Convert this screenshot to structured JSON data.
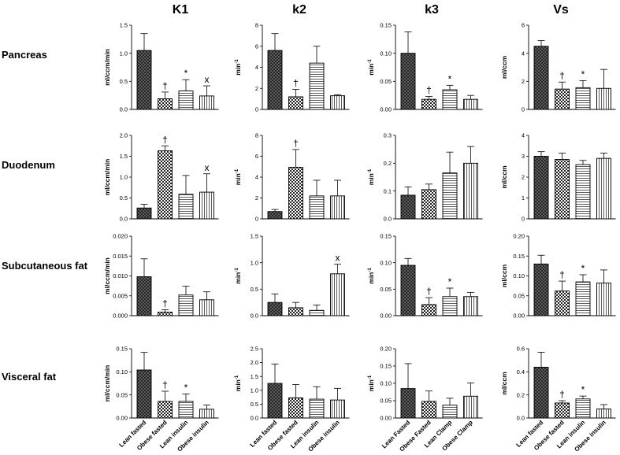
{
  "column_titles": [
    "K1",
    "k2",
    "k3",
    "Vs"
  ],
  "row_labels": [
    "Pancreas",
    "Duodenum",
    "Subcutaneous fat",
    "Visceral fat"
  ],
  "categories_insulin": [
    "Lean fasted",
    "Obese fasted",
    "Lean insulin",
    "Obese insulin"
  ],
  "categories_clamp": [
    "Lean Fasted",
    "Obese Fasted",
    "Lean Clamp",
    "Obese Clamp"
  ],
  "series_patterns": [
    "crosshatch",
    "checker",
    "horizontal-lines",
    "vertical-lines"
  ],
  "colors": {
    "ink": "#000000",
    "background": "#ffffff"
  },
  "chart_data": [
    {
      "type": "bar",
      "row": 0,
      "col": 0,
      "ylabel": "ml/ccm/min",
      "ylim": [
        0,
        1.5
      ],
      "yticks": [
        "0.0",
        "0.5",
        "1.0",
        "1.5"
      ],
      "values": [
        1.05,
        0.19,
        0.33,
        0.24
      ],
      "errors": [
        0.3,
        0.12,
        0.2,
        0.18
      ],
      "marks": [
        "",
        "†",
        "*",
        "x"
      ]
    },
    {
      "type": "bar",
      "row": 0,
      "col": 1,
      "ylabel": "min-1",
      "ylim": [
        0,
        8
      ],
      "yticks": [
        "0",
        "2",
        "4",
        "6",
        "8"
      ],
      "values": [
        5.6,
        1.2,
        4.4,
        1.3
      ],
      "errors": [
        1.6,
        0.7,
        1.6,
        0.1
      ],
      "marks": [
        "",
        "†",
        "",
        ""
      ]
    },
    {
      "type": "bar",
      "row": 0,
      "col": 2,
      "ylabel": "min-1",
      "ylim": [
        0,
        0.15
      ],
      "yticks": [
        "0.00",
        "0.05",
        "0.10",
        "0.15"
      ],
      "values": [
        0.1,
        0.018,
        0.035,
        0.018
      ],
      "errors": [
        0.038,
        0.005,
        0.008,
        0.007
      ],
      "marks": [
        "",
        "†",
        "*",
        ""
      ]
    },
    {
      "type": "bar",
      "row": 0,
      "col": 3,
      "ylabel": "ml/ccm",
      "ylim": [
        0,
        6
      ],
      "yticks": [
        "0",
        "2",
        "4",
        "6"
      ],
      "values": [
        4.5,
        1.45,
        1.55,
        1.5
      ],
      "errors": [
        0.4,
        0.5,
        0.5,
        1.35
      ],
      "marks": [
        "",
        "†",
        "*",
        ""
      ]
    },
    {
      "type": "bar",
      "row": 1,
      "col": 0,
      "ylabel": "ml/ccm/min",
      "ylim": [
        0,
        2
      ],
      "yticks": [
        "0.0",
        "0.5",
        "1.0",
        "1.5",
        "2.0"
      ],
      "values": [
        0.26,
        1.63,
        0.59,
        0.64
      ],
      "errors": [
        0.09,
        0.12,
        0.45,
        0.44
      ],
      "marks": [
        "",
        "†",
        "",
        "x"
      ]
    },
    {
      "type": "bar",
      "row": 1,
      "col": 1,
      "ylabel": "min-1",
      "ylim": [
        0,
        8
      ],
      "yticks": [
        "0",
        "2",
        "4",
        "6",
        "8"
      ],
      "values": [
        0.7,
        4.95,
        2.2,
        2.2
      ],
      "errors": [
        0.2,
        1.7,
        1.5,
        1.5
      ],
      "marks": [
        "",
        "†",
        "",
        ""
      ]
    },
    {
      "type": "bar",
      "row": 1,
      "col": 2,
      "ylabel": "min-1",
      "ylim": [
        0,
        0.3
      ],
      "yticks": [
        "0.0",
        "0.1",
        "0.2",
        "0.3"
      ],
      "values": [
        0.085,
        0.105,
        0.165,
        0.2
      ],
      "errors": [
        0.03,
        0.02,
        0.075,
        0.06
      ],
      "marks": [
        "",
        "",
        "",
        ""
      ]
    },
    {
      "type": "bar",
      "row": 1,
      "col": 3,
      "ylabel": "ml/ccm",
      "ylim": [
        0,
        4
      ],
      "yticks": [
        "0",
        "1",
        "2",
        "3",
        "4"
      ],
      "values": [
        3.0,
        2.85,
        2.6,
        2.9
      ],
      "errors": [
        0.22,
        0.3,
        0.2,
        0.25
      ],
      "marks": [
        "",
        "",
        "",
        ""
      ]
    },
    {
      "type": "bar",
      "row": 2,
      "col": 0,
      "ylabel": "ml/ccm/min",
      "ylim": [
        0,
        0.02
      ],
      "yticks": [
        "0.000",
        "0.005",
        "0.010",
        "0.015",
        "0.020"
      ],
      "values": [
        0.0098,
        0.0009,
        0.0052,
        0.004
      ],
      "errors": [
        0.0045,
        0.0006,
        0.0022,
        0.002
      ],
      "marks": [
        "",
        "†",
        "",
        ""
      ]
    },
    {
      "type": "bar",
      "row": 2,
      "col": 1,
      "ylabel": "min-1",
      "ylim": [
        0,
        1.5
      ],
      "yticks": [
        "0.0",
        "0.5",
        "1.0",
        "1.5"
      ],
      "values": [
        0.25,
        0.15,
        0.1,
        0.79
      ],
      "errors": [
        0.16,
        0.1,
        0.1,
        0.18
      ],
      "marks": [
        "",
        "",
        "",
        "x"
      ]
    },
    {
      "type": "bar",
      "row": 2,
      "col": 2,
      "ylabel": "min-1",
      "ylim": [
        0,
        0.15
      ],
      "yticks": [
        "0.00",
        "0.05",
        "0.10",
        "0.15"
      ],
      "values": [
        0.095,
        0.021,
        0.036,
        0.036
      ],
      "errors": [
        0.013,
        0.013,
        0.016,
        0.008
      ],
      "marks": [
        "",
        "†",
        "*",
        ""
      ]
    },
    {
      "type": "bar",
      "row": 2,
      "col": 3,
      "ylabel": "ml/ccm",
      "ylim": [
        0,
        0.2
      ],
      "yticks": [
        "0.00",
        "0.05",
        "0.10",
        "0.15",
        "0.20"
      ],
      "values": [
        0.13,
        0.062,
        0.085,
        0.082
      ],
      "errors": [
        0.022,
        0.025,
        0.018,
        0.033
      ],
      "marks": [
        "",
        "†",
        "*",
        ""
      ]
    },
    {
      "type": "bar",
      "row": 3,
      "col": 0,
      "ylabel": "ml/ccm/min",
      "ylim": [
        0,
        0.15
      ],
      "yticks": [
        "0.00",
        "0.05",
        "0.10",
        "0.15"
      ],
      "values": [
        0.104,
        0.036,
        0.036,
        0.019
      ],
      "errors": [
        0.038,
        0.022,
        0.016,
        0.009
      ],
      "marks": [
        "",
        "†",
        "*",
        ""
      ]
    },
    {
      "type": "bar",
      "row": 3,
      "col": 1,
      "ylabel": "min-1",
      "ylim": [
        0,
        2.5
      ],
      "yticks": [
        "0.0",
        "0.5",
        "1.0",
        "1.5",
        "2.0",
        "2.5"
      ],
      "values": [
        1.25,
        0.73,
        0.68,
        0.65
      ],
      "errors": [
        0.7,
        0.48,
        0.45,
        0.42
      ],
      "marks": [
        "",
        "",
        "",
        ""
      ]
    },
    {
      "type": "bar",
      "row": 3,
      "col": 2,
      "ylabel": "min-1",
      "ylim": [
        0,
        0.2
      ],
      "yticks": [
        "0.00",
        "0.05",
        "0.10",
        "0.15",
        "0.20"
      ],
      "values": [
        0.085,
        0.048,
        0.037,
        0.063
      ],
      "errors": [
        0.072,
        0.03,
        0.02,
        0.038
      ],
      "marks": [
        "",
        "",
        "",
        ""
      ]
    },
    {
      "type": "bar",
      "row": 3,
      "col": 3,
      "ylabel": "ml/ccm",
      "ylim": [
        0,
        0.6
      ],
      "yticks": [
        "0.0",
        "0.2",
        "0.4",
        "0.6"
      ],
      "values": [
        0.44,
        0.13,
        0.165,
        0.078
      ],
      "errors": [
        0.13,
        0.02,
        0.025,
        0.038
      ],
      "marks": [
        "",
        "†",
        "*",
        ""
      ]
    }
  ]
}
